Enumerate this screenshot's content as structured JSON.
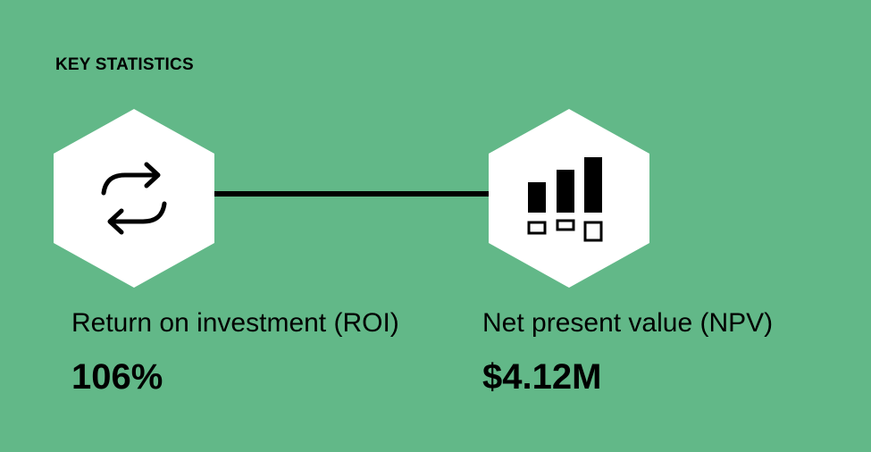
{
  "heading": "KEY STATISTICS",
  "colors": {
    "background": "#62b888",
    "hexagon": "#ffffff",
    "ink": "#000000"
  },
  "stats": [
    {
      "icon": "refresh-icon",
      "label": "Return on investment (ROI)",
      "value": "106%"
    },
    {
      "icon": "bar-chart-icon",
      "label": "Net present value (NPV)",
      "value": "$4.12M"
    }
  ]
}
